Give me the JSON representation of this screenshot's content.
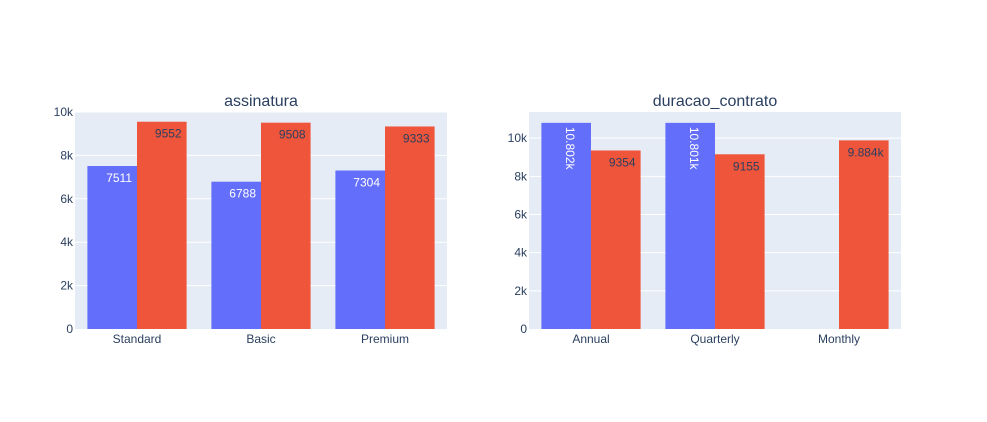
{
  "colors": {
    "series_a": "#636efa",
    "series_b": "#ef553b",
    "plot_bg": "#e5ecf6",
    "grid": "#ffffff",
    "text": "#2a3f5f"
  },
  "chart_data": [
    {
      "type": "bar",
      "title": "assinatura",
      "categories": [
        "Standard",
        "Basic",
        "Premium"
      ],
      "series": [
        {
          "values": [
            7511,
            6788,
            7304
          ],
          "labels": [
            "7511",
            "6788",
            "7304"
          ]
        },
        {
          "values": [
            9552,
            9508,
            9333
          ],
          "labels": [
            "9552",
            "9508",
            "9333"
          ]
        }
      ],
      "ylim": [
        0,
        10000
      ],
      "yticks": [
        0,
        2000,
        4000,
        6000,
        8000,
        10000
      ],
      "ytick_labels": [
        "0",
        "2k",
        "4k",
        "6k",
        "8k",
        "10k"
      ],
      "grid": true
    },
    {
      "type": "bar",
      "title": "duracao_contrato",
      "categories": [
        "Annual",
        "Quarterly",
        "Monthly"
      ],
      "series": [
        {
          "values": [
            10802,
            10801,
            null
          ],
          "labels": [
            "10.802k",
            "10.801k",
            ""
          ]
        },
        {
          "values": [
            9354,
            9155,
            9884
          ],
          "labels": [
            "9354",
            "9155",
            "9.884k"
          ]
        }
      ],
      "ylim": [
        0,
        11370
      ],
      "yticks": [
        0,
        2000,
        4000,
        6000,
        8000,
        10000
      ],
      "ytick_labels": [
        "0",
        "2k",
        "4k",
        "6k",
        "8k",
        "10k"
      ],
      "grid": true
    }
  ]
}
